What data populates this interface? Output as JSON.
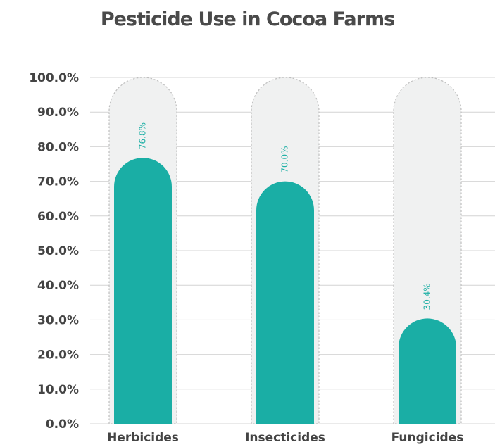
{
  "chart_data": {
    "type": "bar",
    "title": "Pesticide Use in Cocoa Farms",
    "xlabel": "",
    "ylabel": "",
    "categories": [
      "Herbicides",
      "Insecticides",
      "Fungicides"
    ],
    "values": [
      76.8,
      70.0,
      30.4
    ],
    "data_labels": [
      "76.8%",
      "70.0%",
      "30.4%"
    ],
    "ylim": [
      0,
      100
    ],
    "y_ticks": [
      0,
      10,
      20,
      30,
      40,
      50,
      60,
      70,
      80,
      90,
      100
    ],
    "y_tick_labels": [
      "0.0%",
      "10.0%",
      "20.0%",
      "30.0%",
      "40.0%",
      "50.0%",
      "60.0%",
      "70.0%",
      "80.0%",
      "90.0%",
      "100.0%"
    ],
    "grid": true,
    "legend": "none",
    "colors": {
      "bar": "#1aaea5",
      "track": "#f0f1f1",
      "track_border": "#bfbfbf",
      "grid": "#d4d4d4",
      "data_label": "#1fb0a6",
      "text": "#444444"
    }
  }
}
